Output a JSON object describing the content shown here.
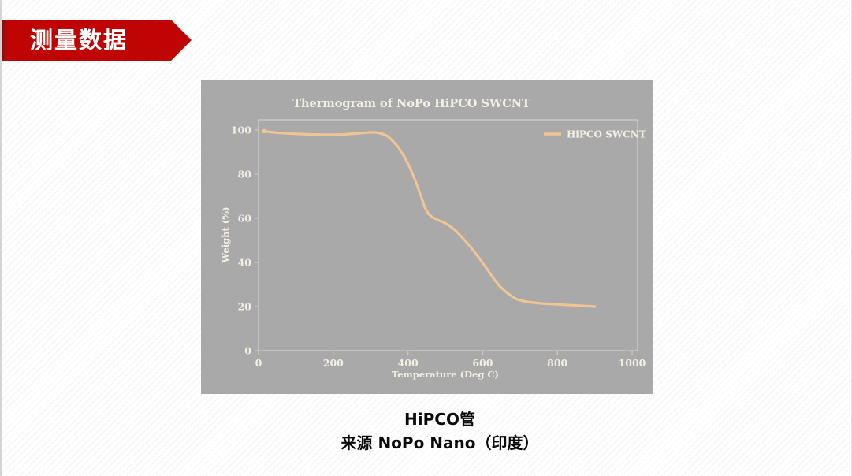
{
  "slide": {
    "banner": {
      "label": "测量数据",
      "fill_color": "#C00404",
      "left_edge_color": "#8F1111",
      "text_color": "#FFFFFF"
    },
    "caption": {
      "line1": "HiPCO管",
      "line2": "来源 NoPo Nano（印度）"
    }
  },
  "chart_data": {
    "type": "line",
    "title": "Thermogram of NoPo HiPCO SWCNT",
    "xlabel": "Temperature (Deg C)",
    "ylabel": "Weight (%)",
    "xlim": [
      0,
      1015
    ],
    "ylim": [
      0,
      104.6
    ],
    "x_ticks": [
      0,
      200,
      400,
      600,
      800,
      1000
    ],
    "y_ticks": [
      0,
      20,
      40,
      60,
      80,
      100
    ],
    "grid": false,
    "legend": {
      "position": "upper right",
      "entries": [
        "HiPCO SWCNT"
      ]
    },
    "colors": {
      "figure_background": "#A9A9A9",
      "text": "#F2EFE5",
      "axis_border": "#C8C7C3",
      "series": "#F1C493"
    },
    "series": [
      {
        "name": "HiPCO SWCNT",
        "color": "#F1C493",
        "points": [
          [
            15,
            99.5
          ],
          [
            25,
            99.2
          ],
          [
            50,
            98.8
          ],
          [
            75,
            98.5
          ],
          [
            100,
            98.3
          ],
          [
            125,
            98.1
          ],
          [
            150,
            98.0
          ],
          [
            175,
            97.9
          ],
          [
            200,
            97.9
          ],
          [
            225,
            98.0
          ],
          [
            250,
            98.3
          ],
          [
            275,
            98.6
          ],
          [
            300,
            99.0
          ],
          [
            315,
            98.9
          ],
          [
            330,
            98.4
          ],
          [
            345,
            97.3
          ],
          [
            360,
            95.0
          ],
          [
            375,
            92.0
          ],
          [
            390,
            88.0
          ],
          [
            405,
            83.0
          ],
          [
            420,
            77.0
          ],
          [
            435,
            70.0
          ],
          [
            445,
            65.0
          ],
          [
            455,
            62.0
          ],
          [
            465,
            60.5
          ],
          [
            480,
            59.2
          ],
          [
            495,
            58.2
          ],
          [
            510,
            56.8
          ],
          [
            525,
            54.8
          ],
          [
            540,
            52.3
          ],
          [
            555,
            49.5
          ],
          [
            570,
            46.5
          ],
          [
            585,
            43.2
          ],
          [
            600,
            39.8
          ],
          [
            615,
            36.2
          ],
          [
            630,
            32.6
          ],
          [
            645,
            29.4
          ],
          [
            660,
            27.0
          ],
          [
            675,
            25.0
          ],
          [
            690,
            23.4
          ],
          [
            705,
            22.6
          ],
          [
            720,
            22.1
          ],
          [
            740,
            21.7
          ],
          [
            760,
            21.4
          ],
          [
            780,
            21.2
          ],
          [
            800,
            21.0
          ],
          [
            820,
            20.8
          ],
          [
            840,
            20.6
          ],
          [
            860,
            20.4
          ],
          [
            880,
            20.2
          ],
          [
            900,
            20.0
          ]
        ]
      }
    ]
  }
}
